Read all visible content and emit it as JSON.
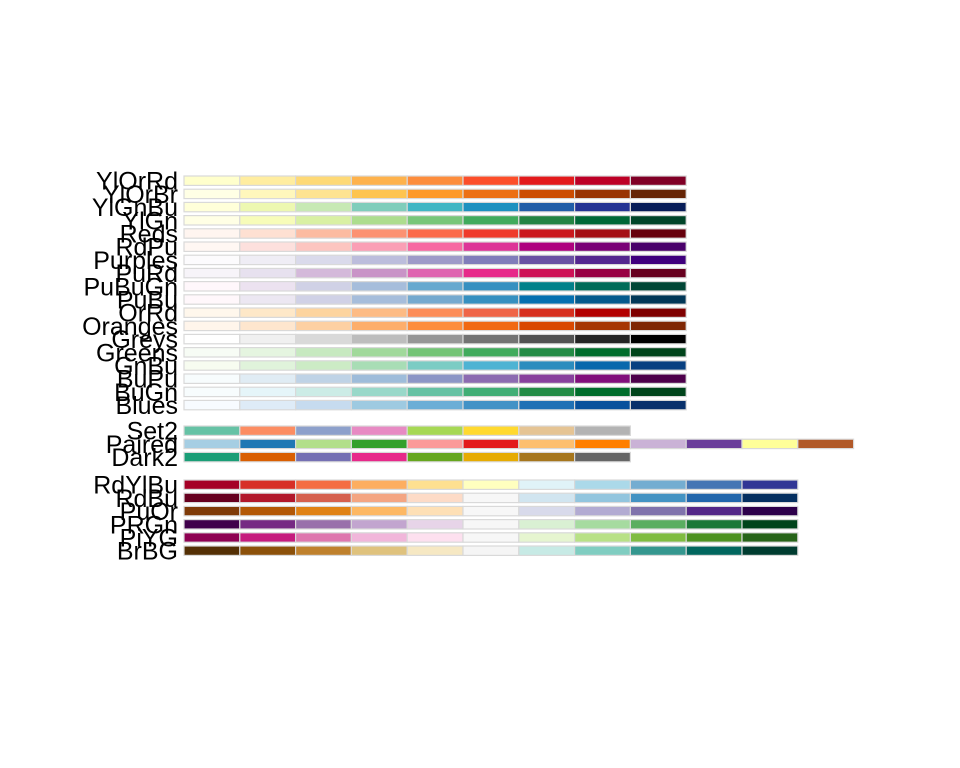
{
  "chart_data": {
    "type": "table",
    "title": "",
    "palettes": [
      {
        "name": "YlOrRd",
        "colors": [
          "#ffffcc",
          "#ffeda0",
          "#fed976",
          "#feb24c",
          "#fd8d3c",
          "#fc4e2a",
          "#e31a1c",
          "#bd0026",
          "#800026"
        ]
      },
      {
        "name": "YlOrBr",
        "colors": [
          "#ffffe5",
          "#fff7bc",
          "#fee391",
          "#fec44f",
          "#fe9929",
          "#ec7014",
          "#cc4c02",
          "#993404",
          "#662506"
        ]
      },
      {
        "name": "YlGnBu",
        "colors": [
          "#ffffd9",
          "#edf8b1",
          "#c7e9b4",
          "#7fcdbb",
          "#41b6c4",
          "#1d91c0",
          "#225ea8",
          "#253494",
          "#081d58"
        ]
      },
      {
        "name": "YlGn",
        "colors": [
          "#ffffe5",
          "#f7fcb9",
          "#d9f0a3",
          "#addd8e",
          "#78c679",
          "#41ab5d",
          "#238443",
          "#006837",
          "#004529"
        ]
      },
      {
        "name": "Reds",
        "colors": [
          "#fff5f0",
          "#fee0d2",
          "#fcbba1",
          "#fc9272",
          "#fb6a4a",
          "#ef3b2c",
          "#cb181d",
          "#a50f15",
          "#67000d"
        ]
      },
      {
        "name": "RdPu",
        "colors": [
          "#fff7f3",
          "#fde0dd",
          "#fcc5c0",
          "#fa9fb5",
          "#f768a1",
          "#dd3497",
          "#ae017e",
          "#7a0177",
          "#49006a"
        ]
      },
      {
        "name": "Purples",
        "colors": [
          "#fcfbfd",
          "#efedf5",
          "#dadaeb",
          "#bcbddc",
          "#9e9ac8",
          "#807dba",
          "#6a51a3",
          "#54278f",
          "#3f007d"
        ]
      },
      {
        "name": "PuRd",
        "colors": [
          "#f7f4f9",
          "#e7e1ef",
          "#d4b9da",
          "#c994c7",
          "#df65b0",
          "#e7298a",
          "#ce1256",
          "#980043",
          "#67001f"
        ]
      },
      {
        "name": "PuBuGn",
        "colors": [
          "#fff7fb",
          "#ece2f0",
          "#d0d1e6",
          "#a6bddb",
          "#67a9cf",
          "#3690c0",
          "#02818a",
          "#016c59",
          "#014636"
        ]
      },
      {
        "name": "PuBu",
        "colors": [
          "#fff7fb",
          "#ece7f2",
          "#d0d1e6",
          "#a6bddb",
          "#74a9cf",
          "#3690c0",
          "#0570b0",
          "#045a8d",
          "#023858"
        ]
      },
      {
        "name": "OrRd",
        "colors": [
          "#fff7ec",
          "#fee8c8",
          "#fdd49e",
          "#fdbb84",
          "#fc8d59",
          "#ef6548",
          "#d7301f",
          "#b30000",
          "#7f0000"
        ]
      },
      {
        "name": "Oranges",
        "colors": [
          "#fff5eb",
          "#fee6ce",
          "#fdd0a2",
          "#fdae6b",
          "#fd8d3c",
          "#f16913",
          "#d94801",
          "#a63603",
          "#7f2704"
        ]
      },
      {
        "name": "Greys",
        "colors": [
          "#ffffff",
          "#f0f0f0",
          "#d9d9d9",
          "#bdbdbd",
          "#969696",
          "#737373",
          "#525252",
          "#252525",
          "#000000"
        ]
      },
      {
        "name": "Greens",
        "colors": [
          "#f7fcf5",
          "#e5f5e0",
          "#c7e9c0",
          "#a1d99b",
          "#74c476",
          "#41ab5d",
          "#238b45",
          "#006d2c",
          "#00441b"
        ]
      },
      {
        "name": "GnBu",
        "colors": [
          "#f7fcf0",
          "#e0f3db",
          "#ccebc5",
          "#a8ddb5",
          "#7bccc4",
          "#4eb3d3",
          "#2b8cbe",
          "#0868ac",
          "#084081"
        ]
      },
      {
        "name": "BuPu",
        "colors": [
          "#f7fcfd",
          "#e0ecf4",
          "#bfd3e6",
          "#9ebcda",
          "#8c96c6",
          "#8c6bb1",
          "#88419d",
          "#810f7c",
          "#4d004b"
        ]
      },
      {
        "name": "BuGn",
        "colors": [
          "#f7fcfd",
          "#e5f5f9",
          "#ccece6",
          "#99d8c9",
          "#66c2a4",
          "#41ae76",
          "#238b45",
          "#006d2c",
          "#00441b"
        ]
      },
      {
        "name": "Blues",
        "colors": [
          "#f7fbff",
          "#deebf7",
          "#c6dbef",
          "#9ecae1",
          "#6baed6",
          "#4292c6",
          "#2171b5",
          "#08519c",
          "#08306b"
        ]
      },
      {
        "name": "Set2",
        "colors": [
          "#66c2a5",
          "#fc8d62",
          "#8da0cb",
          "#e78ac3",
          "#a6d854",
          "#ffd92f",
          "#e5c494",
          "#b3b3b3"
        ]
      },
      {
        "name": "Paired",
        "colors": [
          "#a6cee3",
          "#1f78b4",
          "#b2df8a",
          "#33a02c",
          "#fb9a99",
          "#e31a1c",
          "#fdbf6f",
          "#ff7f00",
          "#cab2d6",
          "#6a3d9a",
          "#ffff99",
          "#b15928"
        ]
      },
      {
        "name": "Dark2",
        "colors": [
          "#1b9e77",
          "#d95f02",
          "#7570b3",
          "#e7298a",
          "#66a61e",
          "#e6ab02",
          "#a6761d",
          "#666666"
        ]
      },
      {
        "name": "RdYlBu",
        "colors": [
          "#a50026",
          "#d73027",
          "#f46d43",
          "#fdae61",
          "#fee090",
          "#ffffbf",
          "#e0f3f8",
          "#abd9e9",
          "#74add1",
          "#4575b4",
          "#313695"
        ]
      },
      {
        "name": "RdBu",
        "colors": [
          "#67001f",
          "#b2182b",
          "#d6604d",
          "#f4a582",
          "#fddbc7",
          "#f7f7f7",
          "#d1e5f0",
          "#92c5de",
          "#4393c3",
          "#2166ac",
          "#053061"
        ]
      },
      {
        "name": "PuOr",
        "colors": [
          "#7f3b08",
          "#b35806",
          "#e08214",
          "#fdb863",
          "#fee0b6",
          "#f7f7f7",
          "#d8daeb",
          "#b2abd2",
          "#8073ac",
          "#542788",
          "#2d004b"
        ]
      },
      {
        "name": "PRGn",
        "colors": [
          "#40004b",
          "#762a83",
          "#9970ab",
          "#c2a5cf",
          "#e7d4e8",
          "#f7f7f7",
          "#d9f0d3",
          "#a6dba0",
          "#5aae61",
          "#1b7837",
          "#00441b"
        ]
      },
      {
        "name": "PiYG",
        "colors": [
          "#8e0152",
          "#c51b7d",
          "#de77ae",
          "#f1b6da",
          "#fde0ef",
          "#f7f7f7",
          "#e6f5d0",
          "#b8e186",
          "#7fbc41",
          "#4d9221",
          "#276419"
        ]
      },
      {
        "name": "BrBG",
        "colors": [
          "#543005",
          "#8c510a",
          "#bf812d",
          "#dfc27d",
          "#f6e8c3",
          "#f5f5f5",
          "#c7eae5",
          "#80cdc1",
          "#35978f",
          "#01665e",
          "#003c30"
        ]
      }
    ]
  }
}
